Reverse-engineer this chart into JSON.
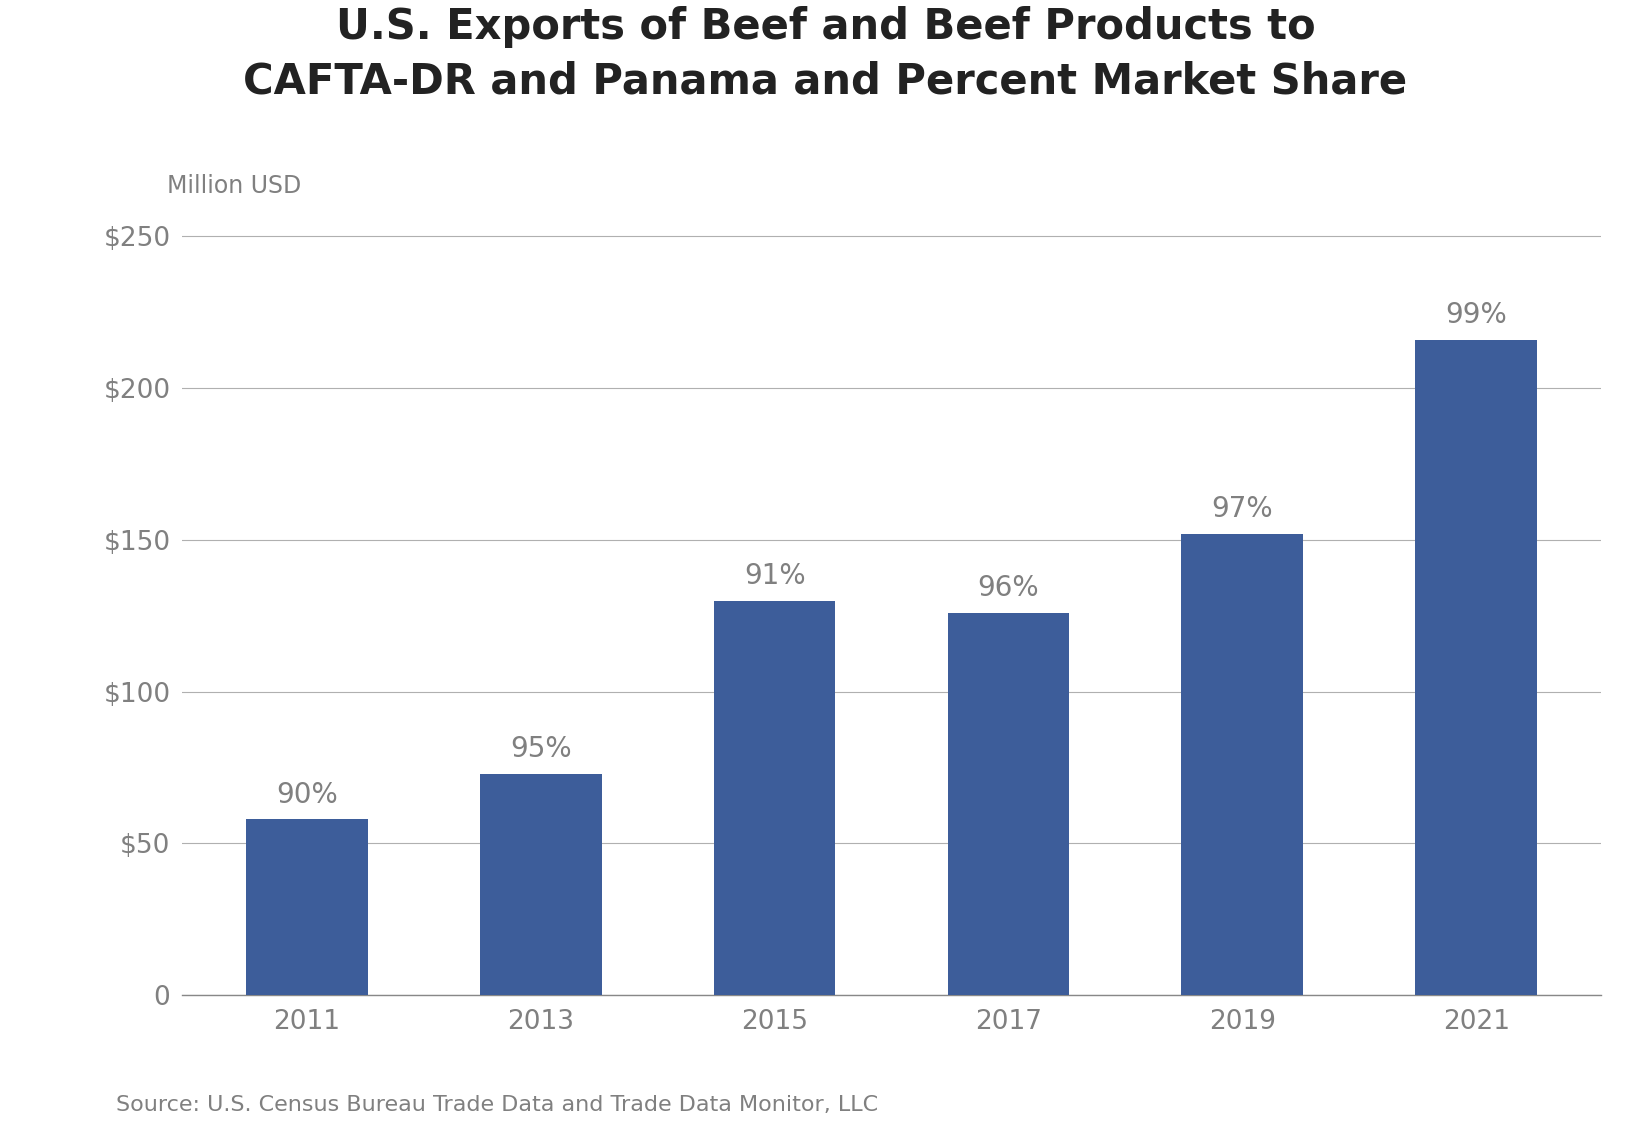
{
  "title": "U.S. Exports of Beef and Beef Products to\nCAFTA-DR and Panama and Percent Market Share",
  "ylabel": "Million USD",
  "source": "Source: U.S. Census Bureau Trade Data and Trade Data Monitor, LLC",
  "categories": [
    "2011",
    "2013",
    "2015",
    "2017",
    "2019",
    "2021"
  ],
  "values": [
    58,
    73,
    130,
    126,
    152,
    216
  ],
  "percentages": [
    "90%",
    "95%",
    "91%",
    "96%",
    "97%",
    "99%"
  ],
  "bar_color": "#3D5D9A",
  "ylim": [
    0,
    260
  ],
  "yticks": [
    0,
    50,
    100,
    150,
    200,
    250
  ],
  "ytick_labels": [
    "0",
    "$50",
    "$100",
    "$150",
    "$200",
    "$250"
  ],
  "title_fontsize": 30,
  "axis_label_fontsize": 17,
  "tick_fontsize": 19,
  "pct_fontsize": 20,
  "source_fontsize": 16,
  "background_color": "#ffffff",
  "grid_color": "#b0b0b0",
  "text_color": "#808080",
  "title_color": "#222222",
  "spine_color": "#888888"
}
